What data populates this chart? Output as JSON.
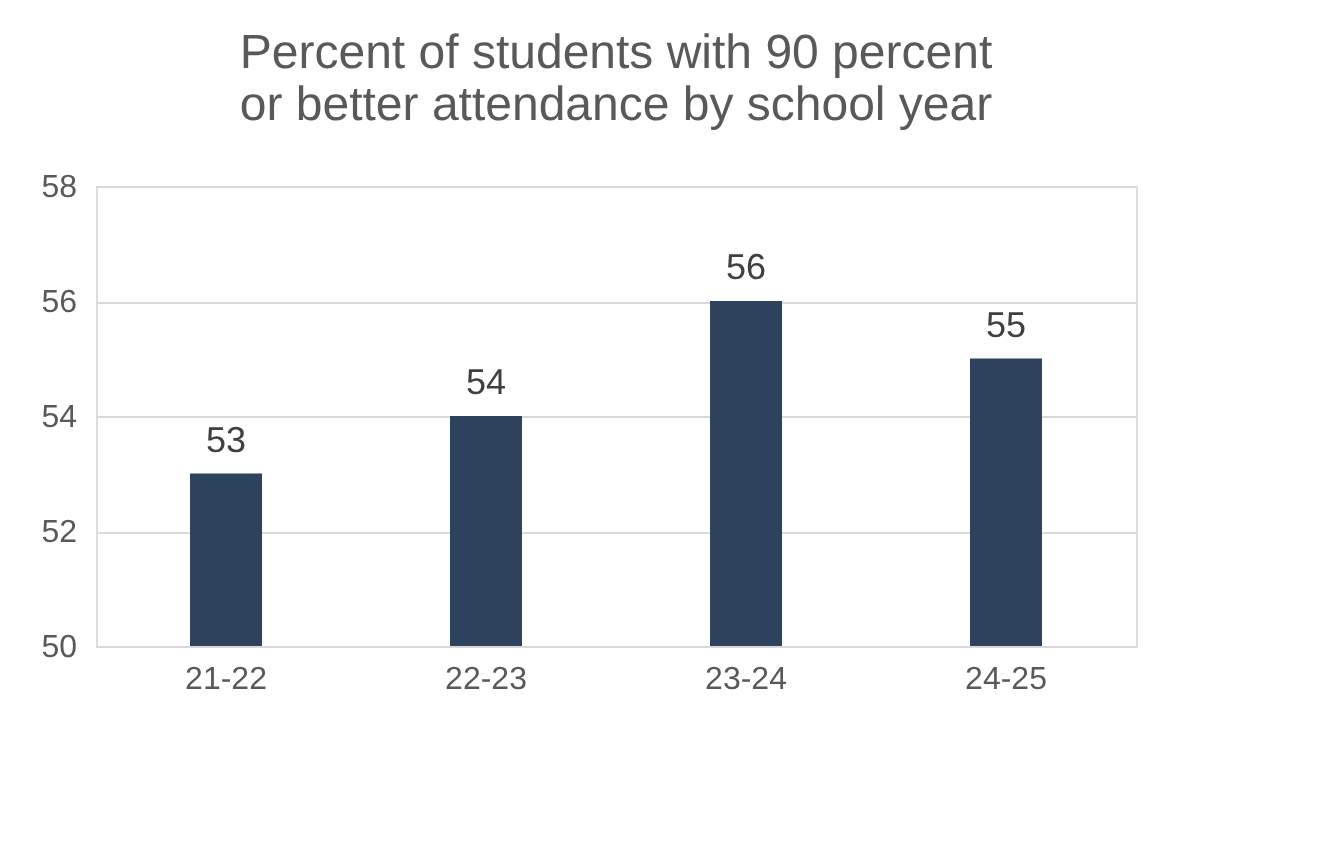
{
  "chart_data": {
    "type": "bar",
    "title": "Percent of students with 90 percent or better attendance by school year",
    "categories": [
      "21-22",
      "22-23",
      "23-24",
      "24-25"
    ],
    "values": [
      53,
      54,
      56,
      55
    ],
    "color": "#2e445e",
    "ylim": [
      50,
      58
    ],
    "yticks": [
      50,
      52,
      54,
      56,
      58
    ],
    "grid": "y",
    "data_labels": true
  }
}
